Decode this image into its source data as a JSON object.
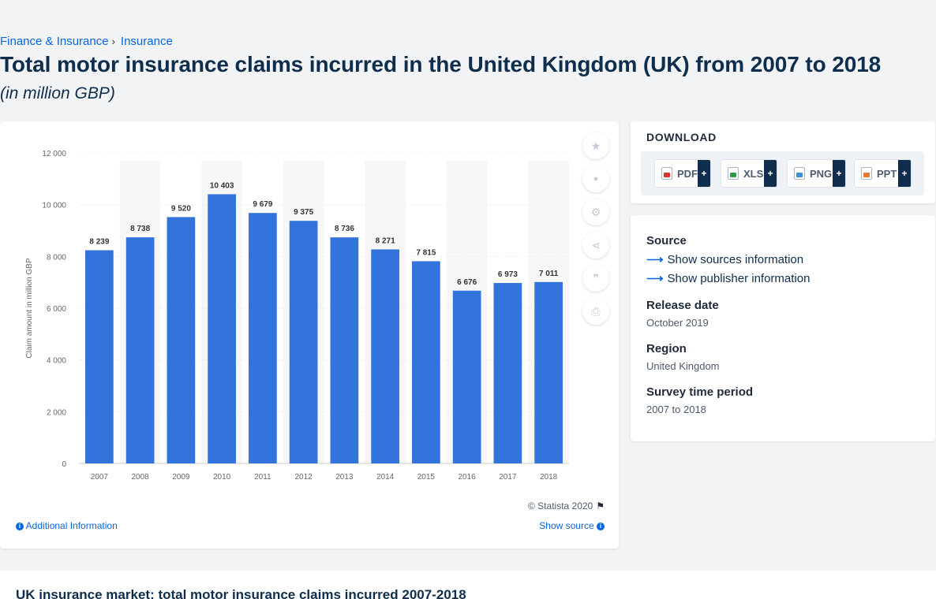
{
  "breadcrumb": {
    "items": [
      "Finance & Insurance",
      "Insurance"
    ],
    "separator": "›"
  },
  "page": {
    "title": "Total motor insurance claims incurred in the United Kingdom (UK) from 2007 to 2018",
    "subtitle": "(in million GBP)"
  },
  "chart_data": {
    "type": "bar",
    "categories": [
      "2007",
      "2008",
      "2009",
      "2010",
      "2011",
      "2012",
      "2013",
      "2014",
      "2015",
      "2016",
      "2017",
      "2018"
    ],
    "values": [
      8239,
      8738,
      9520,
      10403,
      9679,
      9375,
      8736,
      8271,
      7815,
      6676,
      6973,
      7011
    ],
    "value_labels": [
      "8 239",
      "8 738",
      "9 520",
      "10 403",
      "9 679",
      "9 375",
      "8 736",
      "8 271",
      "7 815",
      "6 676",
      "6 973",
      "7 011"
    ],
    "ylabel": "Claim amount in million GBP",
    "xlabel": "",
    "ylim": [
      0,
      12000
    ],
    "yticks": [
      0,
      2000,
      4000,
      6000,
      8000,
      10000,
      12000
    ],
    "ytick_labels": [
      "0",
      "2 000",
      "4 000",
      "6 000",
      "8 000",
      "10 000",
      "12 000"
    ],
    "bar_color": "#3273dc",
    "grid": true,
    "legend": "none"
  },
  "chart_footer": {
    "copyright": "© Statista 2020",
    "additional_info": "Additional Information",
    "show_source": "Show source"
  },
  "tools": [
    {
      "icon": "star-icon",
      "glyph": "★"
    },
    {
      "icon": "bell-icon",
      "glyph": "🔔"
    },
    {
      "icon": "gear-icon",
      "glyph": "⚙"
    },
    {
      "icon": "share-icon",
      "glyph": "⋖"
    },
    {
      "icon": "quote-icon",
      "glyph": "❞"
    },
    {
      "icon": "print-icon",
      "glyph": "⎙"
    }
  ],
  "download": {
    "title": "DOWNLOAD",
    "buttons": [
      {
        "label": "PDF",
        "color": "#d9332f",
        "plus": "+"
      },
      {
        "label": "XLS",
        "color": "#2e9d46",
        "plus": "+"
      },
      {
        "label": "PNG",
        "color": "#3b8fd9",
        "plus": "+"
      },
      {
        "label": "PPT",
        "color": "#e8772e",
        "plus": "+"
      }
    ]
  },
  "meta": {
    "source_label": "Source",
    "show_sources": "Show sources information",
    "show_publisher": "Show publisher information",
    "release_label": "Release date",
    "release_value": "October 2019",
    "region_label": "Region",
    "region_value": "United Kingdom",
    "survey_label": "Survey time period",
    "survey_value": "2007 to 2018"
  },
  "related": {
    "title": "UK insurance market: total motor insurance claims incurred 2007-2018"
  }
}
